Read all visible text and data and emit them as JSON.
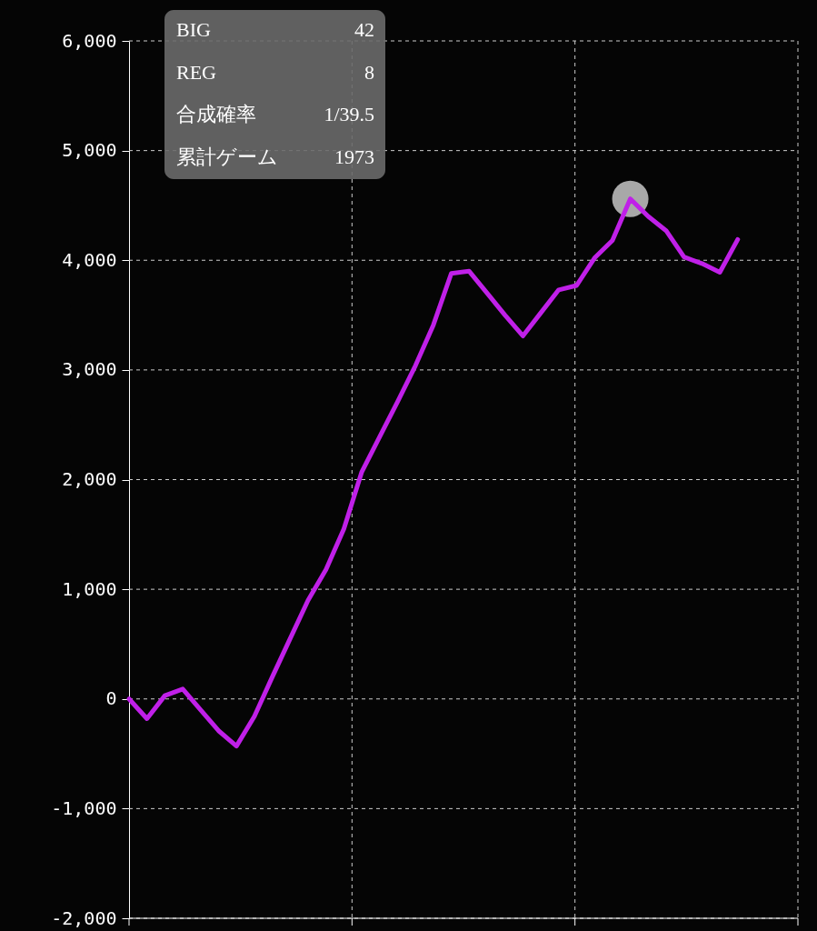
{
  "chart_data": {
    "type": "line",
    "categories": [
      null,
      null,
      null,
      null,
      null,
      null,
      null,
      null,
      null,
      null,
      null,
      null,
      null,
      null,
      null,
      null,
      null,
      null,
      null,
      null,
      null,
      null,
      null,
      null,
      null,
      null,
      null,
      null,
      null,
      null,
      null,
      null,
      null,
      null,
      null
    ],
    "ylim": [
      -2000,
      6000
    ],
    "yticks": [
      {
        "value": -2000,
        "label": "-2,000"
      },
      {
        "value": -1000,
        "label": "-1,000"
      },
      {
        "value": 0,
        "label": "0"
      },
      {
        "value": 1000,
        "label": "1,000"
      },
      {
        "value": 2000,
        "label": "2,000"
      },
      {
        "value": 3000,
        "label": "3,000"
      },
      {
        "value": 4000,
        "label": "4,000"
      },
      {
        "value": 5000,
        "label": "5,000"
      },
      {
        "value": 6000,
        "label": "6,000"
      }
    ],
    "tick_labels": "y",
    "grid": true,
    "series": [
      {
        "color": "#c020e8",
        "line_style": "solid",
        "values": [
          0,
          -180,
          30,
          90,
          -100,
          -290,
          -430,
          -160,
          200,
          550,
          900,
          1180,
          1550,
          2070,
          2390,
          2710,
          3040,
          3410,
          3880,
          3900,
          3700,
          3500,
          3310,
          3520,
          3730,
          3770,
          4020,
          4180,
          4560,
          4400,
          4270,
          4030,
          3970,
          3890,
          4190
        ]
      }
    ],
    "annotations": [
      "BIG",
      "42",
      "REG",
      "8",
      "合成確率",
      "1/39.5",
      "累計ゲーム",
      "1973"
    ]
  }
}
